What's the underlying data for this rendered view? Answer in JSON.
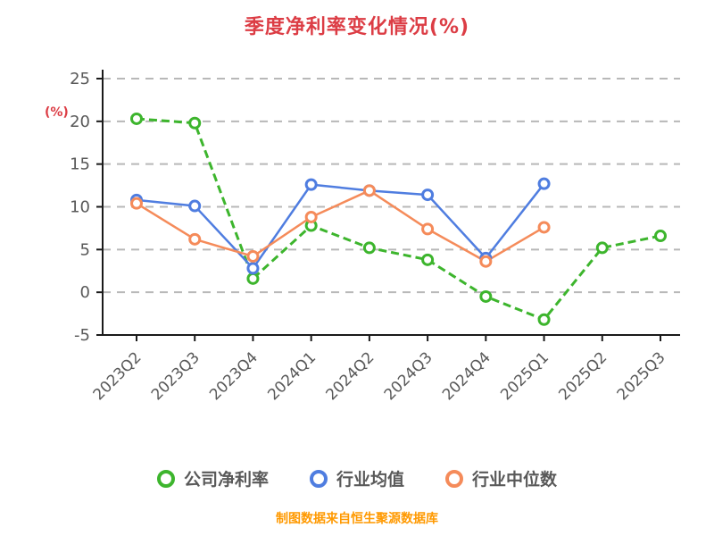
{
  "footer": "制图数据来自恒生聚源数据库",
  "chart_data": {
    "type": "line",
    "title": "季度净利率变化情况(%)",
    "xlabel": "",
    "ylabel": "(%)",
    "categories": [
      "2023Q2",
      "2023Q3",
      "2023Q4",
      "2024Q1",
      "2024Q2",
      "2024Q3",
      "2024Q4",
      "2025Q1",
      "2025Q2",
      "2025Q3"
    ],
    "series": [
      {
        "name": "公司净利率",
        "color": "#3db52d",
        "line_style": "dashed",
        "values": [
          20.3,
          19.8,
          1.6,
          7.8,
          5.2,
          3.8,
          -0.5,
          -3.2,
          5.2,
          6.6
        ]
      },
      {
        "name": "行业均值",
        "color": "#4f7de0",
        "line_style": "solid",
        "values": [
          10.8,
          10.1,
          2.8,
          12.6,
          11.9,
          11.4,
          4.0,
          12.7,
          null,
          null
        ]
      },
      {
        "name": "行业中位数",
        "color": "#f58b5a",
        "line_style": "solid",
        "values": [
          10.4,
          6.2,
          4.2,
          8.8,
          11.9,
          7.4,
          3.6,
          7.6,
          null,
          null
        ]
      }
    ],
    "ylim": [
      -5,
      25
    ],
    "yticks": [
      -5,
      0,
      5,
      10,
      15,
      20,
      25
    ],
    "grid": "dashed-horizontal",
    "legend_position": "bottom",
    "marker": "open-circle",
    "colors": {
      "title": "#dc3d45",
      "ylabel": "#dc3d45",
      "footer": "#ff9900",
      "axis": "#1a1a1a",
      "tick_label": "#595959",
      "grid": "#b8b8b8"
    }
  }
}
